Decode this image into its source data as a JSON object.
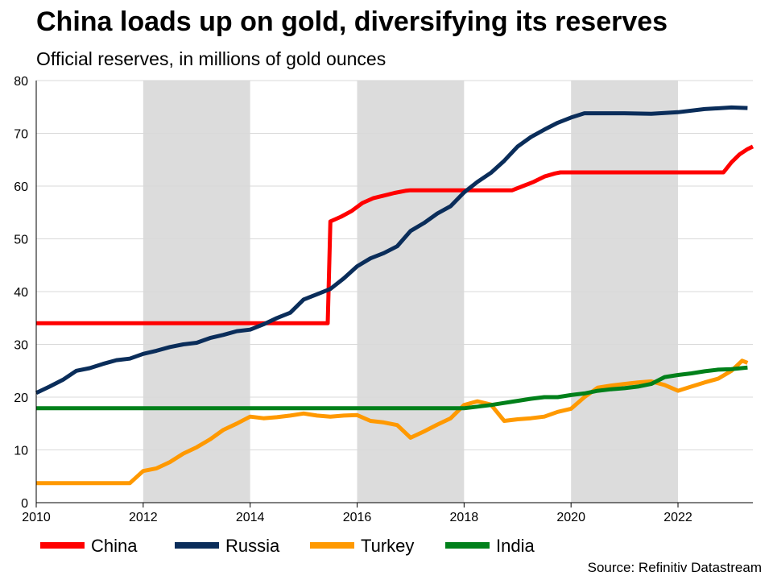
{
  "title": "China loads up on gold, diversifying its reserves",
  "subtitle": "Official reserves, in millions of gold ounces",
  "source": "Source: Refinitiv Datastream",
  "chart_data": {
    "type": "line",
    "xlim": [
      2010,
      2023.4
    ],
    "ylim": [
      0,
      80
    ],
    "x_ticks": [
      2010,
      2012,
      2014,
      2016,
      2018,
      2020,
      2022
    ],
    "y_ticks": [
      0,
      10,
      20,
      30,
      40,
      50,
      60,
      70,
      80
    ],
    "grid": "horizontal",
    "legend_position": "bottom",
    "shaded_bands": [
      [
        2012,
        2014
      ],
      [
        2016,
        2018
      ],
      [
        2020,
        2022
      ]
    ],
    "band_color": "#dcdcdc",
    "series": [
      {
        "name": "China",
        "color": "#ff0000",
        "points": [
          [
            2010,
            34
          ],
          [
            2015.45,
            34
          ],
          [
            2015.5,
            53.3
          ],
          [
            2015.7,
            54.2
          ],
          [
            2015.9,
            55.3
          ],
          [
            2016.1,
            56.8
          ],
          [
            2016.3,
            57.7
          ],
          [
            2016.5,
            58.2
          ],
          [
            2016.7,
            58.7
          ],
          [
            2016.9,
            59.1
          ],
          [
            2017,
            59.2
          ],
          [
            2018.9,
            59.2
          ],
          [
            2019.1,
            60.0
          ],
          [
            2019.3,
            60.8
          ],
          [
            2019.5,
            61.8
          ],
          [
            2019.7,
            62.4
          ],
          [
            2019.8,
            62.6
          ],
          [
            2022.85,
            62.6
          ],
          [
            2023.0,
            64.5
          ],
          [
            2023.15,
            66
          ],
          [
            2023.3,
            67
          ],
          [
            2023.4,
            67.5
          ]
        ]
      },
      {
        "name": "Russia",
        "color": "#0a2d5a",
        "points": [
          [
            2010,
            20.8
          ],
          [
            2010.25,
            22
          ],
          [
            2010.5,
            23.3
          ],
          [
            2010.75,
            25
          ],
          [
            2011,
            25.5
          ],
          [
            2011.25,
            26.3
          ],
          [
            2011.5,
            27
          ],
          [
            2011.75,
            27.3
          ],
          [
            2012,
            28.2
          ],
          [
            2012.25,
            28.8
          ],
          [
            2012.5,
            29.5
          ],
          [
            2012.75,
            30
          ],
          [
            2013,
            30.3
          ],
          [
            2013.25,
            31.2
          ],
          [
            2013.5,
            31.8
          ],
          [
            2013.75,
            32.5
          ],
          [
            2014,
            32.8
          ],
          [
            2014.25,
            33.8
          ],
          [
            2014.5,
            35
          ],
          [
            2014.75,
            36
          ],
          [
            2015,
            38.5
          ],
          [
            2015.25,
            39.5
          ],
          [
            2015.5,
            40.5
          ],
          [
            2015.75,
            42.5
          ],
          [
            2016,
            44.8
          ],
          [
            2016.25,
            46.3
          ],
          [
            2016.5,
            47.3
          ],
          [
            2016.75,
            48.6
          ],
          [
            2017,
            51.5
          ],
          [
            2017.25,
            53
          ],
          [
            2017.5,
            54.8
          ],
          [
            2017.75,
            56.2
          ],
          [
            2018,
            58.8
          ],
          [
            2018.25,
            60.8
          ],
          [
            2018.5,
            62.5
          ],
          [
            2018.75,
            64.8
          ],
          [
            2019,
            67.5
          ],
          [
            2019.25,
            69.3
          ],
          [
            2019.5,
            70.7
          ],
          [
            2019.75,
            72
          ],
          [
            2020.0,
            73.0
          ],
          [
            2020.25,
            73.8
          ],
          [
            2021,
            73.8
          ],
          [
            2021.5,
            73.7
          ],
          [
            2022,
            74.0
          ],
          [
            2022.5,
            74.6
          ],
          [
            2023.0,
            74.9
          ],
          [
            2023.3,
            74.8
          ]
        ]
      },
      {
        "name": "Turkey",
        "color": "#ff9900",
        "points": [
          [
            2010,
            3.7
          ],
          [
            2011.75,
            3.7
          ],
          [
            2012,
            6
          ],
          [
            2012.25,
            6.5
          ],
          [
            2012.5,
            7.7
          ],
          [
            2012.75,
            9.3
          ],
          [
            2013,
            10.5
          ],
          [
            2013.25,
            12
          ],
          [
            2013.5,
            13.8
          ],
          [
            2013.75,
            15
          ],
          [
            2014,
            16.3
          ],
          [
            2014.25,
            16
          ],
          [
            2014.5,
            16.2
          ],
          [
            2014.75,
            16.5
          ],
          [
            2015,
            16.9
          ],
          [
            2015.25,
            16.5
          ],
          [
            2015.5,
            16.3
          ],
          [
            2015.75,
            16.5
          ],
          [
            2016,
            16.6
          ],
          [
            2016.25,
            15.5
          ],
          [
            2016.5,
            15.2
          ],
          [
            2016.75,
            14.7
          ],
          [
            2017,
            12.3
          ],
          [
            2017.25,
            13.5
          ],
          [
            2017.5,
            14.8
          ],
          [
            2017.75,
            16
          ],
          [
            2018,
            18.5
          ],
          [
            2018.25,
            19.2
          ],
          [
            2018.5,
            18.6
          ],
          [
            2018.75,
            15.5
          ],
          [
            2019,
            15.8
          ],
          [
            2019.25,
            16
          ],
          [
            2019.5,
            16.3
          ],
          [
            2019.75,
            17.2
          ],
          [
            2020,
            17.8
          ],
          [
            2020.25,
            20
          ],
          [
            2020.5,
            21.8
          ],
          [
            2020.75,
            22.2
          ],
          [
            2021,
            22.5
          ],
          [
            2021.25,
            22.8
          ],
          [
            2021.5,
            23
          ],
          [
            2021.75,
            22.3
          ],
          [
            2022,
            21.2
          ],
          [
            2022.25,
            22
          ],
          [
            2022.5,
            22.8
          ],
          [
            2022.75,
            23.5
          ],
          [
            2023,
            25
          ],
          [
            2023.2,
            26.9
          ],
          [
            2023.3,
            26.5
          ]
        ]
      },
      {
        "name": "India",
        "color": "#00801a",
        "points": [
          [
            2010,
            17.9
          ],
          [
            2018,
            17.9
          ],
          [
            2018.25,
            18.2
          ],
          [
            2018.5,
            18.5
          ],
          [
            2018.75,
            18.9
          ],
          [
            2019,
            19.3
          ],
          [
            2019.25,
            19.7
          ],
          [
            2019.5,
            20
          ],
          [
            2019.75,
            20
          ],
          [
            2020,
            20.4
          ],
          [
            2020.25,
            20.7
          ],
          [
            2020.5,
            21.2
          ],
          [
            2020.75,
            21.5
          ],
          [
            2021,
            21.7
          ],
          [
            2021.25,
            22
          ],
          [
            2021.5,
            22.5
          ],
          [
            2021.75,
            23.8
          ],
          [
            2022,
            24.2
          ],
          [
            2022.25,
            24.5
          ],
          [
            2022.5,
            24.9
          ],
          [
            2022.75,
            25.2
          ],
          [
            2023,
            25.3
          ],
          [
            2023.3,
            25.6
          ]
        ]
      }
    ]
  }
}
